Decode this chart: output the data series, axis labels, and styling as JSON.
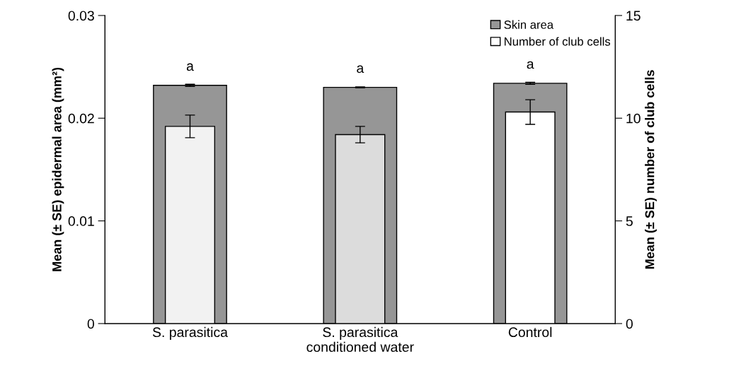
{
  "chart_data": {
    "type": "bar",
    "categories": [
      "S. parasitica",
      "S. parasitica\nconditioned water",
      "Control"
    ],
    "series": [
      {
        "name": "Skin area",
        "color": "#969696",
        "values": [
          0.0232,
          0.023,
          0.0234
        ],
        "errors": [
          0.0001,
          5e-05,
          0.0001
        ]
      },
      {
        "name": "Number of club cells",
        "axis": "y2",
        "colors": [
          "#f2f2f2",
          "#dcdcdc",
          "#ffffff"
        ],
        "values": [
          9.6,
          9.2,
          10.3
        ],
        "errors": [
          0.55,
          0.4,
          0.6
        ]
      }
    ],
    "ylabel": "Mean (± SE) epidermal area (mm²)",
    "y2label": "Mean (± SE) number of club cells",
    "ylim": [
      0,
      0.03
    ],
    "yticks": [
      {
        "value": 0,
        "label": "0"
      },
      0.01,
      0.02,
      0.03
    ],
    "y2lim": [
      0,
      15
    ],
    "y2ticks": [
      0,
      5,
      10,
      15
    ],
    "annotations": [
      "a",
      "a",
      "a"
    ],
    "legend": "top right",
    "grid": false
  }
}
